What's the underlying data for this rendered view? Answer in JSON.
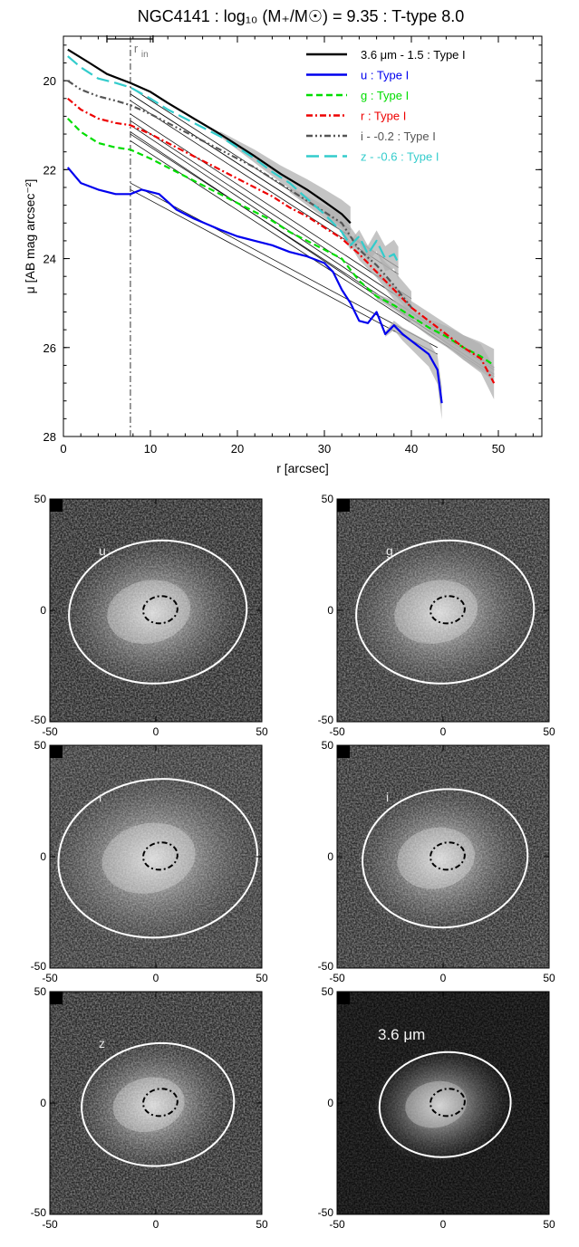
{
  "figure": {
    "title": "NGC4141 : log₁₀ (M₊/M☉) = 9.35 : T-type 8.0"
  },
  "chart_data": {
    "type": "line",
    "title": "NGC4141 : log₁₀ (M₊/M☉) = 9.35 : T-type 8.0",
    "xlabel": "r [arcsec]",
    "ylabel": "μ [AB mag arcsec⁻²]",
    "xlim": [
      0,
      55
    ],
    "ylim": [
      28,
      19
    ],
    "y_inverted": true,
    "xticks": [
      "0",
      "10",
      "20",
      "30",
      "40",
      "50"
    ],
    "yticks": [
      "20",
      "22",
      "24",
      "26",
      "28"
    ],
    "legend_position": "top-right",
    "r_in": {
      "label": "r",
      "sub": "in",
      "value": 7.7,
      "range": [
        5.0,
        10.3
      ]
    },
    "series": [
      {
        "name": "3.6 μm - 1.5 : Type I",
        "color": "#000000",
        "dash": "solid",
        "x": [
          0.5,
          3,
          5,
          7.7,
          10,
          12,
          15,
          18,
          20,
          22,
          25,
          28,
          30,
          32,
          33
        ],
        "y": [
          19.3,
          19.6,
          19.85,
          20.05,
          20.25,
          20.5,
          20.85,
          21.2,
          21.45,
          21.7,
          22.1,
          22.45,
          22.72,
          23.0,
          23.2
        ],
        "fits": [
          {
            "x": [
              7.7,
              33
            ],
            "y": [
              20.15,
              23.35
            ]
          },
          {
            "x": [
              7.7,
              33
            ],
            "y": [
              20.3,
              23.5
            ]
          }
        ]
      },
      {
        "name": "u : Type I",
        "color": "#0000ee",
        "dash": "solid",
        "x": [
          0.5,
          2,
          4,
          6,
          7.7,
          9,
          11,
          13,
          15,
          18,
          20,
          22,
          24,
          26,
          28,
          30,
          31,
          32,
          33,
          34,
          35,
          36,
          37,
          38,
          39,
          40,
          41,
          42,
          43,
          43.5
        ],
        "y": [
          21.95,
          22.3,
          22.45,
          22.55,
          22.55,
          22.45,
          22.55,
          22.9,
          23.1,
          23.35,
          23.5,
          23.6,
          23.7,
          23.85,
          23.95,
          24.1,
          24.3,
          24.7,
          25.0,
          25.4,
          25.45,
          25.2,
          25.7,
          25.5,
          25.7,
          25.85,
          26.0,
          26.15,
          26.5,
          27.25
        ],
        "fits": [
          {
            "x": [
              7.7,
              43
            ],
            "y": [
              22.3,
              26.0
            ]
          },
          {
            "x": [
              7.7,
              43
            ],
            "y": [
              22.45,
              26.15
            ]
          }
        ]
      },
      {
        "name": "g : Type I",
        "color": "#00dd00",
        "dash": "dash",
        "x": [
          0.5,
          2,
          4,
          6,
          7.7,
          10,
          12,
          15,
          18,
          20,
          22,
          24,
          26,
          28,
          30,
          32,
          34,
          36,
          38,
          40,
          42,
          44,
          46,
          48,
          49.5
        ],
        "y": [
          20.85,
          21.15,
          21.4,
          21.5,
          21.55,
          21.75,
          21.95,
          22.25,
          22.55,
          22.75,
          22.95,
          23.15,
          23.4,
          23.6,
          23.8,
          24.0,
          24.5,
          24.85,
          25.05,
          25.3,
          25.55,
          25.75,
          26.0,
          26.2,
          26.4
        ],
        "fits": [
          {
            "x": [
              7.7,
              49.5
            ],
            "y": [
              21.2,
              26.5
            ]
          },
          {
            "x": [
              7.7,
              49.5
            ],
            "y": [
              21.35,
              26.65
            ]
          }
        ]
      },
      {
        "name": "r : Type I",
        "color": "#ee0000",
        "dash": "dashdot",
        "x": [
          0.5,
          2,
          4,
          6,
          7.7,
          10,
          12,
          15,
          18,
          20,
          22,
          24,
          26,
          28,
          30,
          32,
          34,
          36,
          38,
          40,
          42,
          44,
          46,
          48,
          49.5
        ],
        "y": [
          20.4,
          20.65,
          20.85,
          20.95,
          21.0,
          21.2,
          21.4,
          21.7,
          22.0,
          22.2,
          22.4,
          22.6,
          22.85,
          23.05,
          23.3,
          23.55,
          23.9,
          24.3,
          24.7,
          25.1,
          25.4,
          25.7,
          26.0,
          26.25,
          26.8
        ],
        "fits": [
          {
            "x": [
              7.7,
              49.5
            ],
            "y": [
              21.0,
              26.45
            ]
          },
          {
            "x": [
              7.7,
              49.5
            ],
            "y": [
              21.15,
              26.6
            ]
          }
        ]
      },
      {
        "name": "i - -0.2 : Type I",
        "color": "#555555",
        "dash": "dashdotdot",
        "x": [
          0.5,
          2,
          4,
          6,
          7.7,
          10,
          12,
          15,
          18,
          20,
          22,
          24,
          26,
          28,
          30,
          32,
          34,
          36,
          38,
          40
        ],
        "y": [
          20.0,
          20.2,
          20.35,
          20.45,
          20.55,
          20.75,
          20.95,
          21.25,
          21.55,
          21.75,
          21.95,
          22.2,
          22.45,
          22.7,
          22.95,
          23.2,
          23.8,
          24.15,
          24.6,
          25.1
        ],
        "fits": [
          {
            "x": [
              7.7,
              40
            ],
            "y": [
              20.75,
              24.9
            ]
          },
          {
            "x": [
              7.7,
              40
            ],
            "y": [
              20.9,
              25.05
            ]
          }
        ]
      },
      {
        "name": "z - -0.6 : Type I",
        "color": "#33cccc",
        "dash": "longdash",
        "x": [
          0.5,
          2,
          4,
          6,
          7.7,
          10,
          12,
          15,
          18,
          20,
          22,
          24,
          26,
          28,
          30,
          32,
          33,
          34,
          35,
          36,
          37,
          38,
          38.5
        ],
        "y": [
          19.45,
          19.7,
          19.95,
          20.05,
          20.15,
          20.4,
          20.65,
          20.95,
          21.25,
          21.5,
          21.75,
          22.05,
          22.3,
          22.65,
          23.0,
          23.4,
          23.7,
          23.5,
          23.9,
          23.6,
          24.0,
          23.9,
          24.1
        ],
        "fits": [
          {
            "x": [
              7.7,
              38.5
            ],
            "y": [
              20.3,
              24.2
            ]
          },
          {
            "x": [
              7.7,
              38.5
            ],
            "y": [
              20.45,
              24.35
            ]
          }
        ]
      }
    ]
  },
  "panels": {
    "tick_labels": {
      "y_top": "50",
      "y_mid": "0",
      "y_bot": "-50",
      "x_left": "-50",
      "x_mid": "0",
      "x_right": "50"
    },
    "items": [
      {
        "label": "u",
        "ellipse_a": 0.84,
        "ellipse_b": 0.64,
        "bg": "#262626"
      },
      {
        "label": "g",
        "ellipse_a": 0.84,
        "ellipse_b": 0.64,
        "bg": "#2c2c2c"
      },
      {
        "label": "r",
        "ellipse_a": 0.94,
        "ellipse_b": 0.71,
        "bg": "#333333"
      },
      {
        "label": "i",
        "ellipse_a": 0.78,
        "ellipse_b": 0.62,
        "bg": "#2c2c2c"
      },
      {
        "label": "z",
        "ellipse_a": 0.72,
        "ellipse_b": 0.55,
        "bg": "#262626"
      },
      {
        "label": "3.6 μm",
        "ellipse_a": 0.62,
        "ellipse_b": 0.47,
        "bg": "#0e0e0e"
      }
    ]
  }
}
